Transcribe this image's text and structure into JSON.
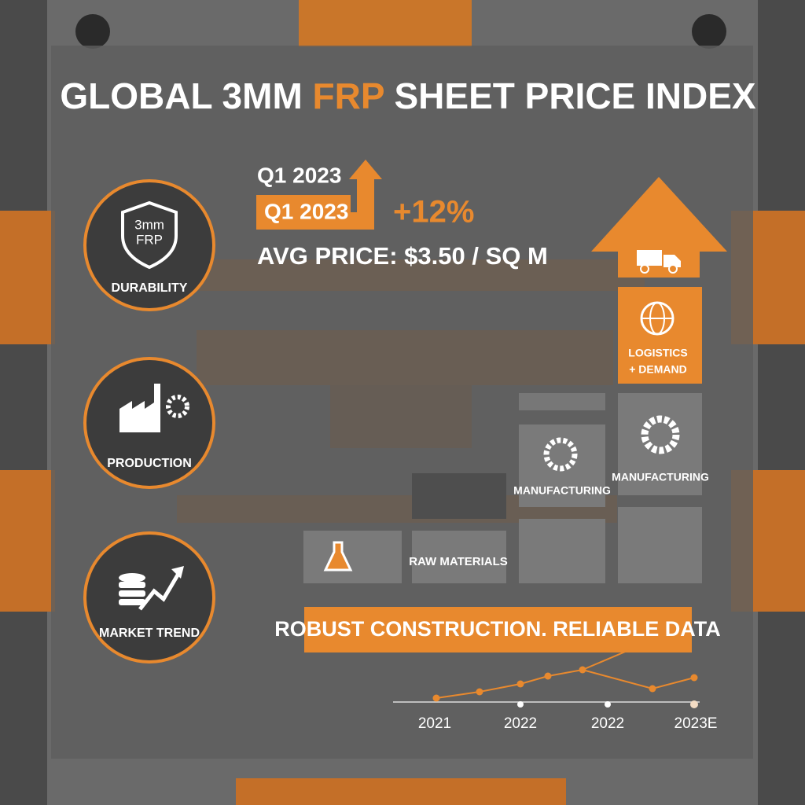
{
  "header": {
    "title_start": "GLOBAL 3MM ",
    "title_highlight": "FRP",
    "title_end": " SHEET PRICE INDEX"
  },
  "summary": {
    "period": "Q1 2023",
    "period_badge": "Q1 2023",
    "change": "+12%",
    "avg_price": "AVG PRICE: $3.50 / SQ M"
  },
  "badges": [
    {
      "icon_line1": "3mm",
      "icon_line2": "FRP",
      "label": "DURABILITY"
    },
    {
      "label": "PRODUCTION"
    },
    {
      "label": "MARKET TREND"
    }
  ],
  "blocks": [
    {
      "label": "RAW MATERIALS"
    },
    {
      "label": "MANUFACTURING"
    },
    {
      "label": "MANUFACTURING"
    },
    {
      "label_line1": "LOGISTICS",
      "label_line2": "+ DEMAND"
    }
  ],
  "banner": "ROBUST CONSTRUCTION. RELIABLE DATA",
  "timeline": [
    "2021",
    "2022",
    "2022",
    "2023E"
  ]
}
